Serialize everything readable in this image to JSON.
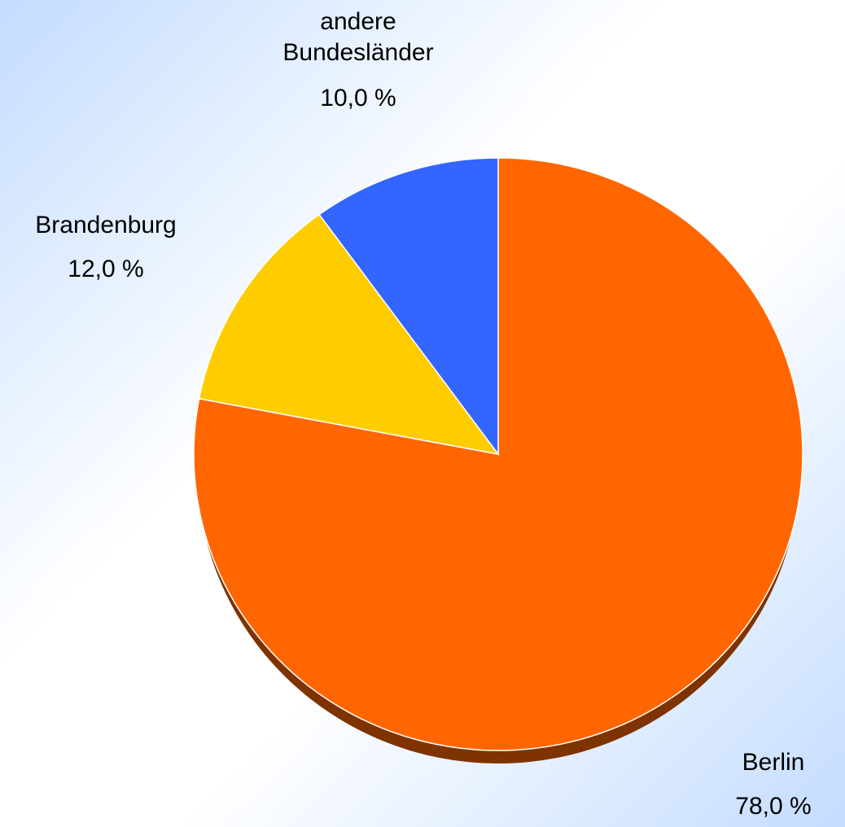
{
  "chart_data": {
    "type": "pie",
    "categories": [
      "Berlin",
      "Brandenburg",
      "andere Bundesländer"
    ],
    "values": [
      78,
      12,
      10
    ],
    "value_labels": [
      "78,0 %",
      "12,0 %",
      "10,0 %"
    ],
    "colors": [
      "#ff6600",
      "#ffcc00",
      "#3366ff"
    ]
  }
}
